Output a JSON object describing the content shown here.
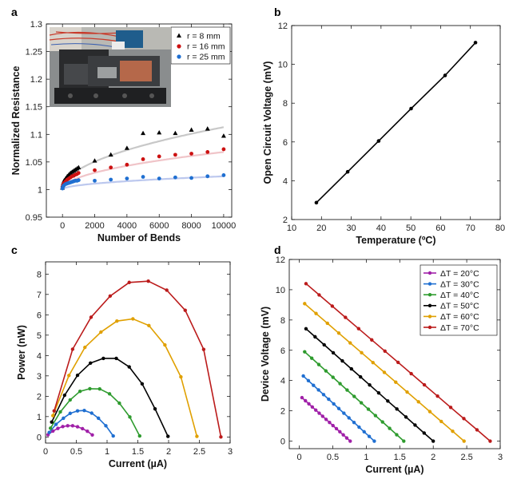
{
  "chart_data": [
    {
      "panel": "a",
      "type": "scatter",
      "xlabel": "Number of Bends",
      "ylabel": "Normalized Resistance",
      "xlim": [
        -1000,
        10500
      ],
      "ylim": [
        0.95,
        1.3
      ],
      "xticks": [
        0,
        2000,
        4000,
        6000,
        8000,
        10000
      ],
      "xtick_labels": [
        "0",
        "2000",
        "4000",
        "6000",
        "8000",
        "10000"
      ],
      "yticks": [
        0.95,
        1,
        1.05,
        1.1,
        1.15,
        1.2,
        1.25,
        1.3
      ],
      "ytick_labels": [
        "0.95",
        "1",
        "1.05",
        "1.1",
        "1.15",
        "1.2",
        "1.25",
        "1.3"
      ],
      "legend_position": "top-right",
      "inset": "photo of bending test setup",
      "series": [
        {
          "name": "r = 8 mm",
          "color": "#000000",
          "fit_color": "#c8c8c8",
          "fit": [
            1.0,
            0.00113,
            0.5
          ],
          "x": [
            0,
            20,
            50,
            100,
            200,
            300,
            400,
            500,
            600,
            700,
            800,
            900,
            1000,
            2000,
            3000,
            4000,
            5000,
            6000,
            7000,
            8000,
            9000,
            10000
          ],
          "y": [
            1.003,
            1.008,
            1.012,
            1.016,
            1.02,
            1.024,
            1.027,
            1.03,
            1.032,
            1.034,
            1.036,
            1.038,
            1.04,
            1.052,
            1.063,
            1.075,
            1.102,
            1.103,
            1.102,
            1.108,
            1.11,
            1.097
          ]
        },
        {
          "name": "r = 16 mm",
          "color": "#cc1111",
          "fit_color": "#f0c4c8",
          "fit": [
            1.0,
            0.00068,
            0.5
          ],
          "x": [
            0,
            20,
            50,
            100,
            200,
            300,
            400,
            500,
            600,
            700,
            800,
            900,
            1000,
            2000,
            3000,
            4000,
            5000,
            6000,
            7000,
            8000,
            9000,
            10000
          ],
          "y": [
            1.003,
            1.006,
            1.009,
            1.012,
            1.015,
            1.018,
            1.02,
            1.022,
            1.024,
            1.025,
            1.027,
            1.028,
            1.03,
            1.035,
            1.04,
            1.045,
            1.055,
            1.06,
            1.063,
            1.065,
            1.068,
            1.073
          ]
        },
        {
          "name": "r = 25 mm",
          "color": "#1f6fd1",
          "fit_color": "#bcc8ee",
          "fit": [
            1.0,
            0.00024,
            0.5
          ],
          "x": [
            0,
            20,
            50,
            100,
            200,
            300,
            400,
            500,
            600,
            700,
            800,
            900,
            1000,
            2000,
            3000,
            4000,
            5000,
            6000,
            7000,
            8000,
            9000,
            10000
          ],
          "y": [
            1.002,
            1.004,
            1.006,
            1.008,
            1.01,
            1.011,
            1.012,
            1.013,
            1.014,
            1.015,
            1.016,
            1.016,
            1.017,
            1.016,
            1.018,
            1.02,
            1.023,
            1.02,
            1.022,
            1.021,
            1.024,
            1.026
          ]
        }
      ]
    },
    {
      "panel": "b",
      "type": "line",
      "xlabel": "Temperature (ºC)",
      "ylabel": "Open Circuit Voltage (mV)",
      "xlim": [
        10,
        80
      ],
      "ylim": [
        2,
        12
      ],
      "xticks": [
        10,
        20,
        30,
        40,
        50,
        60,
        70,
        80
      ],
      "xtick_labels": [
        "10",
        "20",
        "30",
        "40",
        "50",
        "60",
        "70",
        "80"
      ],
      "yticks": [
        2,
        4,
        6,
        8,
        10,
        12
      ],
      "ytick_labels": [
        "2",
        "4",
        "6",
        "8",
        "10",
        "12"
      ],
      "series": [
        {
          "color": "#000000",
          "x": [
            18.3,
            28.8,
            39.2,
            50.1,
            61.5,
            71.7
          ],
          "y": [
            2.87,
            4.46,
            6.05,
            7.72,
            9.43,
            11.12
          ]
        }
      ]
    },
    {
      "panel": "c",
      "type": "line",
      "xlabel": "Current (µA)",
      "ylabel": "Power (nW)",
      "xlim": [
        0,
        3
      ],
      "ylim": [
        -0.3,
        8.6
      ],
      "xticks": [
        0,
        0.5,
        1,
        1.5,
        2,
        2.5,
        3
      ],
      "xtick_labels": [
        "0",
        "0.5",
        "1",
        "1.5",
        "2",
        "2.5",
        "3"
      ],
      "yticks": [
        0,
        1,
        2,
        3,
        4,
        5,
        6,
        7,
        8
      ],
      "ytick_labels": [
        "0",
        "1",
        "2",
        "3",
        "4",
        "5",
        "6",
        "7",
        "8"
      ],
      "series": [
        {
          "color": "#a020a8",
          "x": [
            0.04,
            0.12,
            0.2,
            0.28,
            0.36,
            0.44,
            0.52,
            0.6,
            0.68,
            0.76
          ],
          "y": [
            0.11,
            0.29,
            0.42,
            0.51,
            0.55,
            0.55,
            0.5,
            0.41,
            0.28,
            0.1
          ]
        },
        {
          "color": "#1f6fd1",
          "x": [
            0.06,
            0.17,
            0.29,
            0.4,
            0.52,
            0.63,
            0.75,
            0.86,
            0.98,
            1.1
          ],
          "y": [
            0.22,
            0.62,
            0.92,
            1.16,
            1.28,
            1.3,
            1.17,
            0.92,
            0.55,
            0.05
          ]
        },
        {
          "color": "#2e9b2e",
          "x": [
            0.08,
            0.24,
            0.4,
            0.56,
            0.72,
            0.88,
            1.04,
            1.2,
            1.37,
            1.53
          ],
          "y": [
            0.43,
            1.23,
            1.82,
            2.24,
            2.37,
            2.36,
            2.12,
            1.66,
            0.98,
            0.05
          ]
        },
        {
          "color": "#000000",
          "x": [
            0.1,
            0.31,
            0.52,
            0.73,
            0.94,
            1.15,
            1.36,
            1.57,
            1.78,
            1.99
          ],
          "y": [
            0.73,
            2.05,
            3.03,
            3.63,
            3.86,
            3.86,
            3.44,
            2.61,
            1.38,
            0.03
          ]
        },
        {
          "color": "#e0a000",
          "x": [
            0.12,
            0.38,
            0.64,
            0.9,
            1.16,
            1.42,
            1.68,
            1.94,
            2.2,
            2.46
          ],
          "y": [
            1.05,
            3.02,
            4.4,
            5.15,
            5.69,
            5.8,
            5.47,
            4.52,
            2.95,
            0.03
          ]
        },
        {
          "color": "#bb1b1b",
          "x": [
            0.14,
            0.44,
            0.74,
            1.05,
            1.36,
            1.67,
            1.97,
            2.27,
            2.57,
            2.85
          ],
          "y": [
            1.28,
            4.31,
            5.88,
            6.92,
            7.59,
            7.65,
            7.21,
            6.22,
            4.3,
            0.0
          ]
        }
      ]
    },
    {
      "panel": "d",
      "type": "line",
      "xlabel": "Current (µA)",
      "ylabel": "Device Voltage (mV)",
      "xlim": [
        -0.15,
        3
      ],
      "ylim": [
        -0.5,
        12
      ],
      "xticks": [
        0,
        0.5,
        1,
        1.5,
        2,
        2.5,
        3
      ],
      "xtick_labels": [
        "0",
        "0.5",
        "1",
        "1.5",
        "2",
        "2.5",
        "3"
      ],
      "yticks": [
        0,
        2,
        4,
        6,
        8,
        10,
        12
      ],
      "ytick_labels": [
        "0",
        "2",
        "4",
        "6",
        "8",
        "10",
        "12"
      ],
      "legend_position": "top-right",
      "series": [
        {
          "name": "ΔT = 20°C",
          "color": "#a020a8",
          "x0": 0.04,
          "x1": 0.76,
          "y0": 2.87,
          "y1": 0.0,
          "n": 15
        },
        {
          "name": "ΔT = 30°C",
          "color": "#1f6fd1",
          "x0": 0.06,
          "x1": 1.12,
          "y0": 4.3,
          "y1": 0.0,
          "n": 15
        },
        {
          "name": "ΔT = 40°C",
          "color": "#2e9b2e",
          "x0": 0.08,
          "x1": 1.56,
          "y0": 5.9,
          "y1": 0.0,
          "n": 15
        },
        {
          "name": "ΔT = 50°C",
          "color": "#000000",
          "x0": 0.1,
          "x1": 2.0,
          "y0": 7.42,
          "y1": 0.0,
          "n": 15
        },
        {
          "name": "ΔT = 60°C",
          "color": "#e0a000",
          "x0": 0.08,
          "x1": 2.46,
          "y0": 9.08,
          "y1": 0.0,
          "n": 15
        },
        {
          "name": "ΔT = 70°C",
          "color": "#bb1b1b",
          "x0": 0.1,
          "x1": 2.85,
          "y0": 10.4,
          "y1": 0.0,
          "n": 15
        }
      ]
    }
  ]
}
